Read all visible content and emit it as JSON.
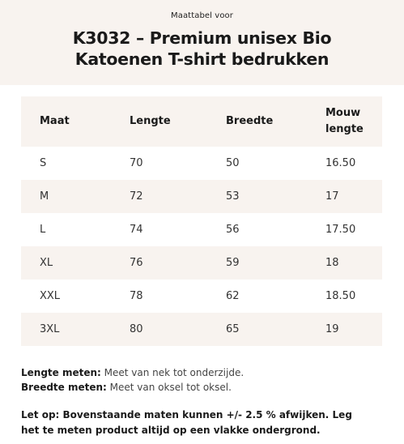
{
  "header": {
    "subtitle": "Maattabel voor",
    "title_line1": "K3032 – Premium unisex Bio",
    "title_line2": "Katoenen T-shirt bedrukken"
  },
  "table": {
    "columns": [
      "Maat",
      "Lengte",
      "Breedte",
      "Mouw",
      "lengte"
    ],
    "rows": [
      [
        "S",
        "70",
        "50",
        "16.50"
      ],
      [
        "M",
        "72",
        "53",
        "17"
      ],
      [
        "L",
        "74",
        "56",
        "17.50"
      ],
      [
        "XL",
        "76",
        "59",
        "18"
      ],
      [
        "XXL",
        "78",
        "62",
        "18.50"
      ],
      [
        "3XL",
        "80",
        "65",
        "19"
      ]
    ]
  },
  "notes": {
    "length_label": "Lengte meten:",
    "length_text": "Meet van nek tot onderzijde.",
    "width_label": "Breedte meten:",
    "width_text": "Meet van oksel tot oksel.",
    "warning_line1": "Let op: Bovenstaande maten kunnen +/- 2.5 % afwijken. Leg",
    "warning_line2": "het te meten product altijd op een vlakke ondergrond."
  }
}
